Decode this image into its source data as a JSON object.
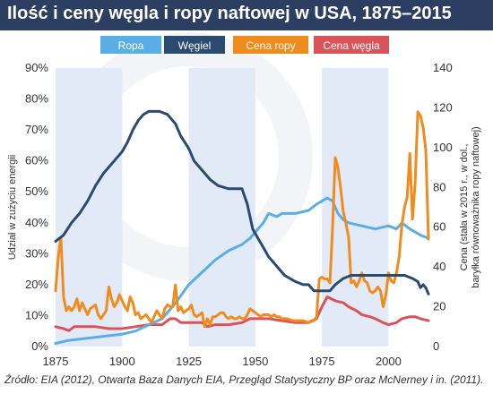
{
  "title": "Ilość i ceny węgla i ropy naftowej w USA, 1875–2015",
  "source": "Źródło: EIA (2012), Otwarta Baza Danych EIA, Przegląd Statystyczny BP oraz McNerney i in. (2011).",
  "colors": {
    "title_bg": "#2c3e61",
    "band": "#e3eaf7",
    "ropa": "#5aaee6",
    "wegiel": "#2a4a70",
    "cena_ropy": "#f08c1e",
    "cena_wegla": "#d9545a"
  },
  "chart_data": {
    "type": "line",
    "legend_placement": "top",
    "grid": false,
    "xlim": [
      1875,
      2015
    ],
    "x_ticks": [
      "1875",
      "1900",
      "1925",
      "1950",
      "1975",
      "2000"
    ],
    "left_axis": {
      "label": "Udział w zużyciu energii",
      "ylim": [
        0,
        90
      ],
      "ticks": [
        "0%",
        "10%",
        "20%",
        "30%",
        "40%",
        "50%",
        "60%",
        "70%",
        "80%",
        "90%"
      ]
    },
    "right_axis": {
      "label_line1": "Cena (stała w 2015 r., w dol.,",
      "label_line2": "baryłka równoważnika ropy naftowej)",
      "ylim": [
        0,
        140
      ],
      "ticks": [
        "0",
        "20",
        "40",
        "60",
        "80",
        "100",
        "120",
        "140"
      ]
    },
    "shaded_bands": [
      [
        1875,
        1900
      ],
      [
        1925,
        1950
      ],
      [
        1975,
        2000
      ]
    ],
    "series": [
      {
        "name": "Ropa",
        "axis": "left",
        "points": [
          [
            1875,
            1
          ],
          [
            1880,
            2
          ],
          [
            1890,
            3
          ],
          [
            1900,
            4
          ],
          [
            1905,
            5
          ],
          [
            1910,
            7
          ],
          [
            1915,
            9
          ],
          [
            1920,
            14
          ],
          [
            1925,
            20
          ],
          [
            1930,
            24
          ],
          [
            1935,
            28
          ],
          [
            1940,
            31
          ],
          [
            1945,
            33
          ],
          [
            1948,
            35
          ],
          [
            1950,
            37
          ],
          [
            1953,
            40
          ],
          [
            1955,
            43
          ],
          [
            1958,
            42
          ],
          [
            1960,
            43
          ],
          [
            1965,
            43
          ],
          [
            1970,
            44
          ],
          [
            1973,
            46
          ],
          [
            1975,
            47
          ],
          [
            1977,
            48
          ],
          [
            1979,
            47
          ],
          [
            1981,
            43
          ],
          [
            1983,
            41
          ],
          [
            1985,
            40
          ],
          [
            1990,
            39
          ],
          [
            1995,
            38
          ],
          [
            2000,
            39
          ],
          [
            2003,
            38
          ],
          [
            2005,
            40
          ],
          [
            2008,
            38
          ],
          [
            2010,
            37
          ],
          [
            2012,
            36
          ],
          [
            2015,
            35
          ]
        ]
      },
      {
        "name": "Węgiel",
        "axis": "left",
        "points": [
          [
            1875,
            34
          ],
          [
            1878,
            36
          ],
          [
            1881,
            40
          ],
          [
            1884,
            43
          ],
          [
            1887,
            47
          ],
          [
            1890,
            52
          ],
          [
            1893,
            56
          ],
          [
            1897,
            60
          ],
          [
            1900,
            63
          ],
          [
            1902,
            66
          ],
          [
            1904,
            70
          ],
          [
            1906,
            73
          ],
          [
            1908,
            75
          ],
          [
            1910,
            76
          ],
          [
            1914,
            76
          ],
          [
            1917,
            75
          ],
          [
            1920,
            72
          ],
          [
            1922,
            68
          ],
          [
            1925,
            64
          ],
          [
            1927,
            60
          ],
          [
            1930,
            57
          ],
          [
            1933,
            54
          ],
          [
            1936,
            52
          ],
          [
            1940,
            51
          ],
          [
            1943,
            51
          ],
          [
            1945,
            51
          ],
          [
            1947,
            46
          ],
          [
            1949,
            38
          ],
          [
            1951,
            35
          ],
          [
            1953,
            32
          ],
          [
            1955,
            29
          ],
          [
            1957,
            27
          ],
          [
            1959,
            25
          ],
          [
            1961,
            23
          ],
          [
            1963,
            22
          ],
          [
            1965,
            21
          ],
          [
            1968,
            20
          ],
          [
            1970,
            20
          ],
          [
            1972,
            18
          ],
          [
            1974,
            18
          ],
          [
            1976,
            18
          ],
          [
            1978,
            18
          ],
          [
            1980,
            20
          ],
          [
            1983,
            22
          ],
          [
            1986,
            23
          ],
          [
            1990,
            23
          ],
          [
            1993,
            23
          ],
          [
            1996,
            23
          ],
          [
            2000,
            23
          ],
          [
            2003,
            23
          ],
          [
            2006,
            23
          ],
          [
            2009,
            22
          ],
          [
            2011,
            21
          ],
          [
            2012,
            19
          ],
          [
            2013,
            20
          ],
          [
            2014,
            19
          ],
          [
            2015,
            17
          ]
        ]
      },
      {
        "name": "Cena ropy",
        "axis": "right",
        "points": [
          [
            1875,
            28
          ],
          [
            1876,
            45
          ],
          [
            1877,
            55
          ],
          [
            1878,
            25
          ],
          [
            1879,
            18
          ],
          [
            1880,
            20
          ],
          [
            1881,
            18
          ],
          [
            1882,
            20
          ],
          [
            1883,
            24
          ],
          [
            1884,
            18
          ],
          [
            1885,
            22
          ],
          [
            1886,
            19
          ],
          [
            1887,
            16
          ],
          [
            1888,
            19
          ],
          [
            1889,
            20
          ],
          [
            1890,
            21
          ],
          [
            1891,
            16
          ],
          [
            1892,
            14
          ],
          [
            1893,
            16
          ],
          [
            1894,
            18
          ],
          [
            1895,
            30
          ],
          [
            1896,
            24
          ],
          [
            1897,
            20
          ],
          [
            1898,
            22
          ],
          [
            1899,
            26
          ],
          [
            1900,
            23
          ],
          [
            1901,
            20
          ],
          [
            1902,
            18
          ],
          [
            1903,
            25
          ],
          [
            1904,
            22
          ],
          [
            1905,
            16
          ],
          [
            1906,
            17
          ],
          [
            1907,
            14
          ],
          [
            1908,
            15
          ],
          [
            1909,
            16
          ],
          [
            1910,
            14
          ],
          [
            1911,
            12
          ],
          [
            1912,
            15
          ],
          [
            1913,
            18
          ],
          [
            1914,
            16
          ],
          [
            1915,
            14
          ],
          [
            1916,
            19
          ],
          [
            1917,
            21
          ],
          [
            1918,
            20
          ],
          [
            1919,
            20
          ],
          [
            1920,
            31
          ],
          [
            1921,
            18
          ],
          [
            1922,
            20
          ],
          [
            1923,
            17
          ],
          [
            1924,
            18
          ],
          [
            1925,
            19
          ],
          [
            1926,
            21
          ],
          [
            1927,
            16
          ],
          [
            1928,
            15
          ],
          [
            1929,
            16
          ],
          [
            1930,
            17
          ],
          [
            1931,
            10
          ],
          [
            1932,
            14
          ],
          [
            1933,
            11
          ],
          [
            1934,
            15
          ],
          [
            1935,
            15
          ],
          [
            1936,
            16
          ],
          [
            1937,
            17
          ],
          [
            1938,
            17
          ],
          [
            1939,
            15
          ],
          [
            1940,
            14
          ],
          [
            1941,
            15
          ],
          [
            1942,
            14
          ],
          [
            1943,
            14
          ],
          [
            1944,
            15
          ],
          [
            1945,
            14
          ],
          [
            1946,
            14
          ],
          [
            1947,
            16
          ],
          [
            1948,
            19
          ],
          [
            1949,
            18
          ],
          [
            1950,
            17
          ],
          [
            1951,
            16
          ],
          [
            1952,
            15
          ],
          [
            1953,
            16
          ],
          [
            1954,
            16
          ],
          [
            1955,
            16
          ],
          [
            1956,
            15
          ],
          [
            1957,
            16
          ],
          [
            1958,
            15
          ],
          [
            1959,
            15
          ],
          [
            1960,
            14
          ],
          [
            1962,
            14
          ],
          [
            1964,
            13
          ],
          [
            1966,
            13
          ],
          [
            1968,
            13
          ],
          [
            1970,
            12
          ],
          [
            1971,
            13
          ],
          [
            1972,
            13
          ],
          [
            1973,
            15
          ],
          [
            1974,
            34
          ],
          [
            1975,
            35
          ],
          [
            1976,
            34
          ],
          [
            1977,
            34
          ],
          [
            1978,
            32
          ],
          [
            1979,
            60
          ],
          [
            1980,
            95
          ],
          [
            1981,
            90
          ],
          [
            1982,
            80
          ],
          [
            1983,
            68
          ],
          [
            1984,
            62
          ],
          [
            1985,
            55
          ],
          [
            1986,
            32
          ],
          [
            1987,
            33
          ],
          [
            1988,
            30
          ],
          [
            1989,
            33
          ],
          [
            1990,
            37
          ],
          [
            1991,
            33
          ],
          [
            1992,
            32
          ],
          [
            1993,
            28
          ],
          [
            1994,
            27
          ],
          [
            1995,
            28
          ],
          [
            1996,
            30
          ],
          [
            1997,
            28
          ],
          [
            1998,
            20
          ],
          [
            1999,
            26
          ],
          [
            2000,
            37
          ],
          [
            2001,
            33
          ],
          [
            2002,
            32
          ],
          [
            2003,
            37
          ],
          [
            2004,
            45
          ],
          [
            2005,
            61
          ],
          [
            2006,
            70
          ],
          [
            2007,
            75
          ],
          [
            2008,
            97
          ],
          [
            2009,
            64
          ],
          [
            2010,
            82
          ],
          [
            2011,
            118
          ],
          [
            2012,
            116
          ],
          [
            2013,
            110
          ],
          [
            2014,
            99
          ],
          [
            2015,
            54
          ]
        ]
      },
      {
        "name": "Cena węgla",
        "axis": "right",
        "points": [
          [
            1875,
            10
          ],
          [
            1878,
            9
          ],
          [
            1880,
            8
          ],
          [
            1882,
            10
          ],
          [
            1885,
            10
          ],
          [
            1890,
            10
          ],
          [
            1895,
            9
          ],
          [
            1900,
            9
          ],
          [
            1905,
            10
          ],
          [
            1910,
            11
          ],
          [
            1915,
            11
          ],
          [
            1918,
            14
          ],
          [
            1920,
            14
          ],
          [
            1922,
            12
          ],
          [
            1925,
            12
          ],
          [
            1930,
            12
          ],
          [
            1932,
            10
          ],
          [
            1935,
            11
          ],
          [
            1940,
            11
          ],
          [
            1945,
            12
          ],
          [
            1948,
            14
          ],
          [
            1950,
            14
          ],
          [
            1955,
            14
          ],
          [
            1960,
            13
          ],
          [
            1965,
            12
          ],
          [
            1970,
            12
          ],
          [
            1973,
            14
          ],
          [
            1975,
            20
          ],
          [
            1977,
            25
          ],
          [
            1980,
            23
          ],
          [
            1983,
            22
          ],
          [
            1985,
            20
          ],
          [
            1988,
            18
          ],
          [
            1990,
            16
          ],
          [
            1993,
            15
          ],
          [
            1995,
            14
          ],
          [
            1998,
            12
          ],
          [
            2000,
            11
          ],
          [
            2003,
            12
          ],
          [
            2005,
            14
          ],
          [
            2008,
            15
          ],
          [
            2010,
            15
          ],
          [
            2012,
            14
          ],
          [
            2015,
            13
          ]
        ]
      }
    ]
  }
}
